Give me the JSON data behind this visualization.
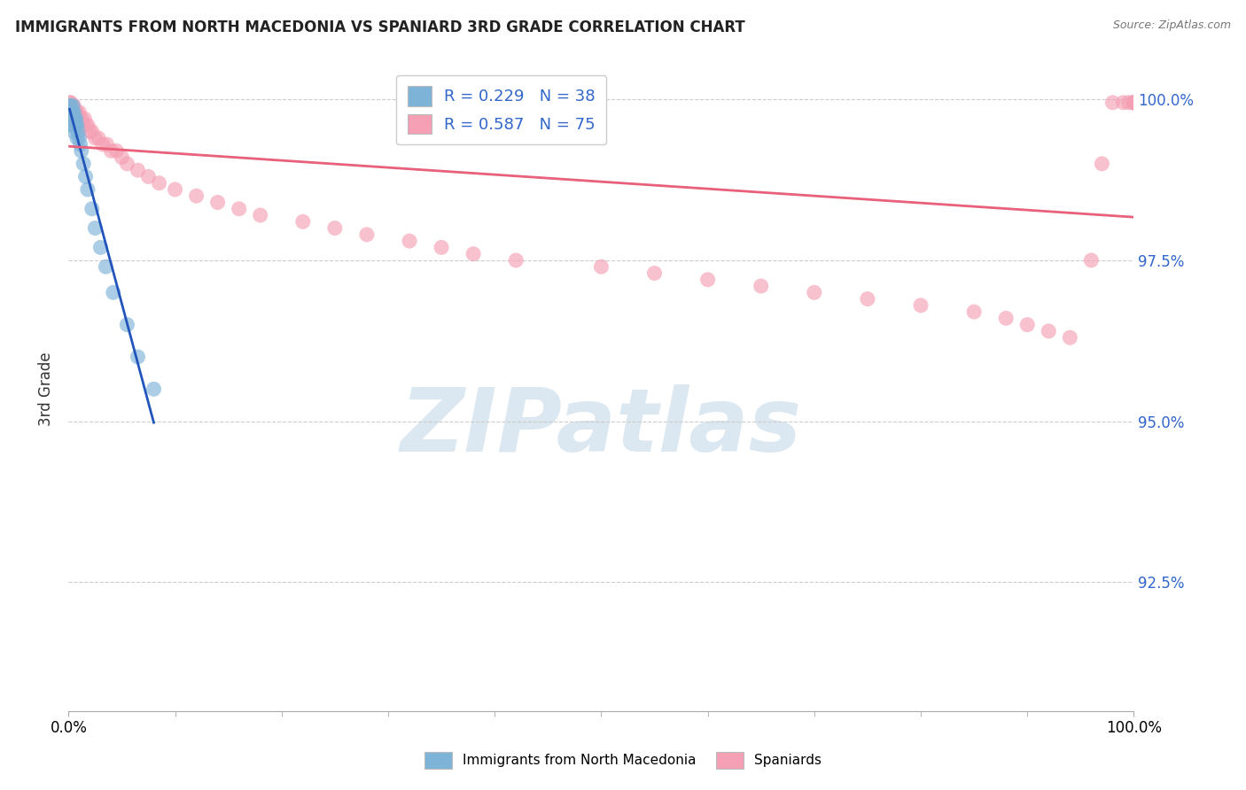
{
  "title": "IMMIGRANTS FROM NORTH MACEDONIA VS SPANIARD 3RD GRADE CORRELATION CHART",
  "source": "Source: ZipAtlas.com",
  "ylabel": "3rd Grade",
  "ytick_labels": [
    "100.0%",
    "97.5%",
    "95.0%",
    "92.5%"
  ],
  "ytick_values": [
    1.0,
    0.975,
    0.95,
    0.925
  ],
  "xlim": [
    0.0,
    1.0
  ],
  "ylim": [
    0.905,
    1.005
  ],
  "blue_R": 0.229,
  "blue_N": 38,
  "pink_R": 0.587,
  "pink_N": 75,
  "legend_label_blue": "Immigrants from North Macedonia",
  "legend_label_pink": "Spaniards",
  "blue_color": "#7EB3D8",
  "pink_color": "#F5A0B5",
  "blue_line_color": "#2255BB",
  "pink_line_color": "#E8607A",
  "watermark_text": "ZIPatlas",
  "watermark_color": "#D8E6F0",
  "blue_x": [
    0.001,
    0.001,
    0.001,
    0.002,
    0.002,
    0.002,
    0.002,
    0.003,
    0.003,
    0.003,
    0.004,
    0.004,
    0.004,
    0.004,
    0.005,
    0.005,
    0.005,
    0.006,
    0.006,
    0.007,
    0.007,
    0.008,
    0.008,
    0.009,
    0.01,
    0.011,
    0.012,
    0.014,
    0.016,
    0.018,
    0.022,
    0.025,
    0.03,
    0.035,
    0.042,
    0.055,
    0.065,
    0.08
  ],
  "blue_y": [
    0.999,
    0.998,
    0.998,
    0.999,
    0.998,
    0.997,
    0.996,
    0.998,
    0.997,
    0.996,
    0.999,
    0.998,
    0.997,
    0.996,
    0.998,
    0.997,
    0.995,
    0.997,
    0.996,
    0.997,
    0.996,
    0.996,
    0.994,
    0.995,
    0.994,
    0.993,
    0.992,
    0.99,
    0.988,
    0.986,
    0.983,
    0.98,
    0.977,
    0.974,
    0.97,
    0.965,
    0.96,
    0.955
  ],
  "pink_x": [
    0.001,
    0.001,
    0.002,
    0.002,
    0.002,
    0.003,
    0.003,
    0.003,
    0.004,
    0.004,
    0.005,
    0.005,
    0.006,
    0.006,
    0.007,
    0.007,
    0.008,
    0.008,
    0.009,
    0.01,
    0.01,
    0.012,
    0.013,
    0.015,
    0.016,
    0.018,
    0.02,
    0.022,
    0.025,
    0.028,
    0.032,
    0.036,
    0.04,
    0.045,
    0.05,
    0.055,
    0.065,
    0.075,
    0.085,
    0.1,
    0.12,
    0.14,
    0.16,
    0.18,
    0.22,
    0.25,
    0.28,
    0.32,
    0.35,
    0.38,
    0.42,
    0.5,
    0.55,
    0.6,
    0.65,
    0.7,
    0.75,
    0.8,
    0.85,
    0.88,
    0.9,
    0.92,
    0.94,
    0.96,
    0.97,
    0.98,
    0.99,
    0.995,
    1.0,
    1.0,
    1.0,
    1.0,
    1.0,
    1.0,
    1.0
  ],
  "pink_y": [
    0.9995,
    0.9985,
    0.9995,
    0.999,
    0.998,
    0.999,
    0.998,
    0.997,
    0.999,
    0.998,
    0.999,
    0.998,
    0.998,
    0.997,
    0.998,
    0.997,
    0.998,
    0.997,
    0.997,
    0.998,
    0.997,
    0.997,
    0.996,
    0.997,
    0.996,
    0.996,
    0.995,
    0.995,
    0.994,
    0.994,
    0.993,
    0.993,
    0.992,
    0.992,
    0.991,
    0.99,
    0.989,
    0.988,
    0.987,
    0.986,
    0.985,
    0.984,
    0.983,
    0.982,
    0.981,
    0.98,
    0.979,
    0.978,
    0.977,
    0.976,
    0.975,
    0.974,
    0.973,
    0.972,
    0.971,
    0.97,
    0.969,
    0.968,
    0.967,
    0.966,
    0.965,
    0.964,
    0.963,
    0.975,
    0.99,
    0.9995,
    0.9995,
    0.9995,
    0.9995,
    0.9995,
    0.9995,
    0.9995,
    0.9995,
    0.9995,
    0.9995
  ]
}
